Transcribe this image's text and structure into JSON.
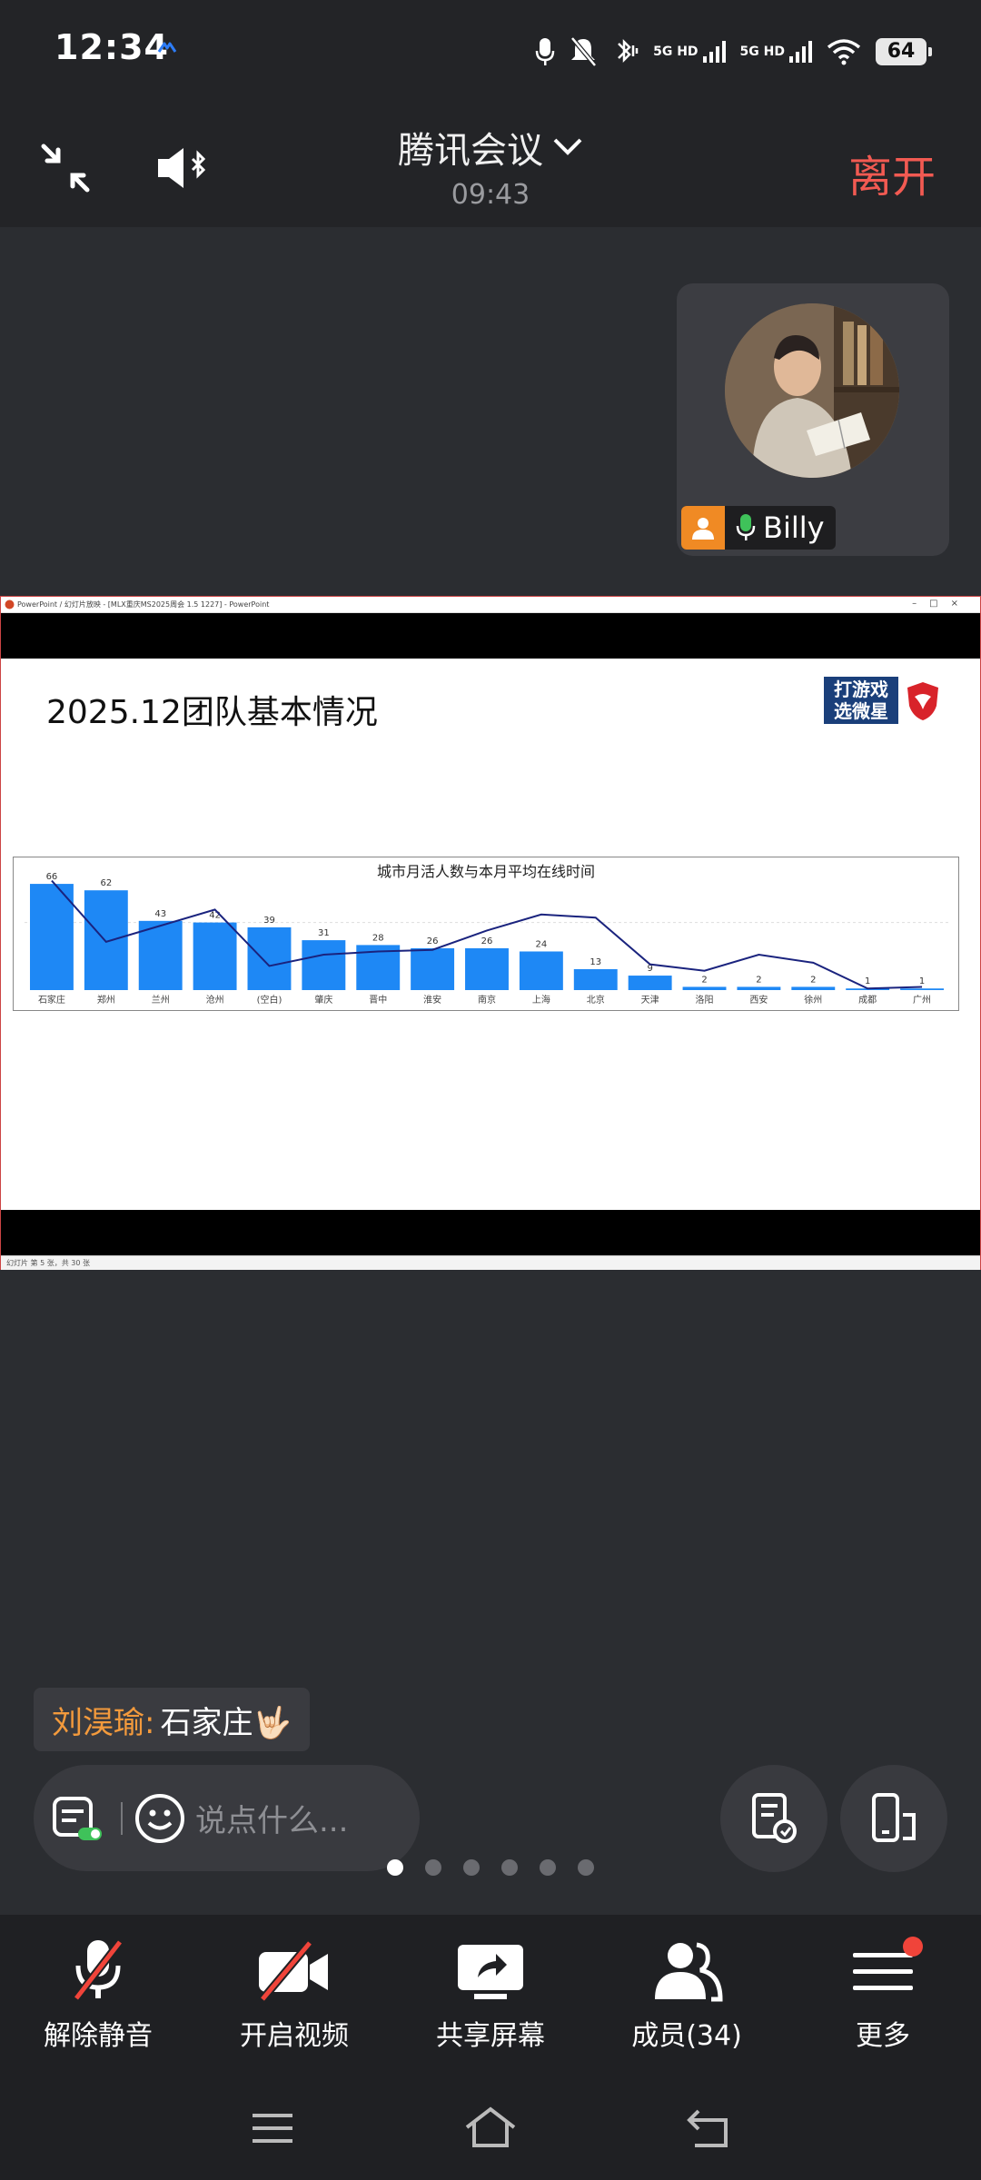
{
  "status_bar": {
    "time": "12:34",
    "network_1": "5G HD",
    "network_2": "5G HD",
    "battery": "64"
  },
  "header": {
    "title": "腾讯会议",
    "timer": "09:43",
    "leave_label": "离开"
  },
  "participant": {
    "name": "Billy"
  },
  "shared_screen": {
    "window_title": "PowerPoint / 幻灯片放映 - [MLX重庆MS2025周会 1.5 1227] - PowerPoint",
    "status_text": "幻灯片 第 5 张，共 30 张",
    "slide_title": "2025.12团队基本情况",
    "logo_text_1": "打游戏",
    "logo_text_2": "选微星"
  },
  "chart_data": {
    "type": "bar",
    "title": "城市月活人数与本月平均在线时间",
    "categories": [
      "石家庄",
      "郑州",
      "兰州",
      "沧州",
      "(空白)",
      "肇庆",
      "晋中",
      "淮安",
      "南京",
      "上海",
      "北京",
      "天津",
      "洛阳",
      "西安",
      "徐州",
      "成都",
      "广州"
    ],
    "series": [
      {
        "values": [
          66,
          62,
          43,
          42,
          39,
          31,
          28,
          26,
          26,
          24,
          13,
          9,
          2,
          2,
          2,
          1,
          1
        ]
      },
      {
        "values": [
          68,
          30,
          40,
          50,
          15,
          22,
          24,
          25,
          37,
          47,
          45,
          16,
          12,
          22,
          17,
          1,
          2
        ]
      }
    ],
    "colors": {
      "bar": "#1e88f5",
      "line": "#1a237e"
    },
    "legend": "none"
  },
  "chat": {
    "sender": "刘淏瑜:",
    "text": "石家庄🤟🏻"
  },
  "input": {
    "placeholder": "说点什么..."
  },
  "toolbar": {
    "unmute_label": "解除静音",
    "video_label": "开启视频",
    "share_label": "共享屏幕",
    "members_label": "成员(34)",
    "more_label": "更多"
  }
}
